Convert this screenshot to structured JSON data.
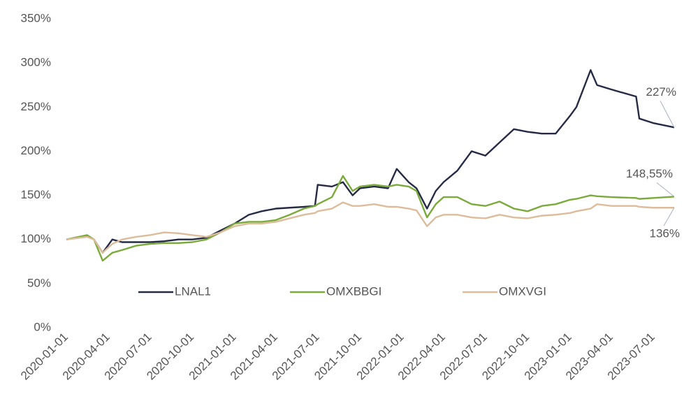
{
  "chart_data": {
    "type": "line",
    "x": [
      "2020-01-01",
      "2020-02-15",
      "2020-03-01",
      "2020-03-20",
      "2020-04-10",
      "2020-05-01",
      "2020-06-01",
      "2020-07-01",
      "2020-08-01",
      "2020-09-01",
      "2020-10-01",
      "2020-11-01",
      "2020-12-01",
      "2021-01-01",
      "2021-02-01",
      "2021-03-01",
      "2021-04-01",
      "2021-05-01",
      "2021-06-01",
      "2021-06-25",
      "2021-07-01",
      "2021-08-01",
      "2021-08-25",
      "2021-09-15",
      "2021-10-01",
      "2021-11-01",
      "2021-12-01",
      "2021-12-20",
      "2022-01-15",
      "2022-02-01",
      "2022-02-24",
      "2022-03-15",
      "2022-04-01",
      "2022-05-01",
      "2022-06-01",
      "2022-07-01",
      "2022-08-01",
      "2022-09-01",
      "2022-10-01",
      "2022-11-01",
      "2022-12-01",
      "2023-01-01",
      "2023-01-15",
      "2023-02-15",
      "2023-03-01",
      "2023-04-01",
      "2023-05-25",
      "2023-06-01",
      "2023-07-01",
      "2023-08-16"
    ],
    "series": [
      {
        "name": "LNAL1",
        "color": "#262b45",
        "values": [
          100,
          104,
          100,
          85,
          100,
          97,
          97,
          97,
          98,
          100,
          100,
          102,
          110,
          118,
          128,
          132,
          135,
          136,
          137,
          138,
          162,
          160,
          165,
          150,
          158,
          160,
          158,
          180,
          165,
          158,
          135,
          155,
          165,
          178,
          200,
          195,
          210,
          225,
          222,
          220,
          220,
          240,
          250,
          292,
          275,
          270,
          262,
          237,
          232,
          227
        ]
      },
      {
        "name": "OMXBBGI",
        "color": "#7aab3a",
        "values": [
          100,
          105,
          100,
          76,
          85,
          88,
          93,
          95,
          96,
          96,
          97,
          100,
          108,
          118,
          120,
          120,
          122,
          128,
          135,
          138,
          140,
          148,
          172,
          155,
          160,
          162,
          160,
          162,
          160,
          155,
          125,
          140,
          148,
          148,
          140,
          138,
          143,
          135,
          132,
          138,
          140,
          145,
          146,
          150,
          149,
          148,
          147,
          146,
          147,
          148.55
        ]
      },
      {
        "name": "OMXVGI",
        "color": "#dcbc9a",
        "values": [
          100,
          103,
          100,
          85,
          95,
          100,
          103,
          105,
          108,
          107,
          105,
          103,
          108,
          115,
          118,
          118,
          120,
          124,
          128,
          130,
          132,
          135,
          142,
          138,
          138,
          140,
          137,
          137,
          135,
          133,
          115,
          125,
          128,
          128,
          125,
          124,
          128,
          125,
          124,
          127,
          128,
          130,
          132,
          135,
          140,
          138,
          138,
          137,
          136,
          136
        ]
      }
    ],
    "annotations": [
      "227%",
      "148,55%",
      "136%"
    ],
    "xlim": [
      "2020-01-01",
      "2023-08-16"
    ],
    "xticks": [
      "2020-01-01",
      "2020-04-01",
      "2020-07-01",
      "2020-10-01",
      "2021-01-01",
      "2021-04-01",
      "2021-07-01",
      "2021-10-01",
      "2022-01-01",
      "2022-04-01",
      "2022-07-01",
      "2022-10-01",
      "2023-01-01",
      "2023-04-01",
      "2023-07-01"
    ],
    "ylim": [
      0,
      350
    ],
    "yticks": [
      {
        "value": 0,
        "label": "0%"
      },
      {
        "value": 50,
        "label": "50%"
      },
      {
        "value": 100,
        "label": "100%"
      },
      {
        "value": 150,
        "label": "150%"
      },
      {
        "value": 200,
        "label": "200%"
      },
      {
        "value": 250,
        "label": "250%"
      },
      {
        "value": 300,
        "label": "300%"
      },
      {
        "value": 350,
        "label": "350%"
      }
    ],
    "grid": false,
    "legend": "inside-bottom"
  }
}
